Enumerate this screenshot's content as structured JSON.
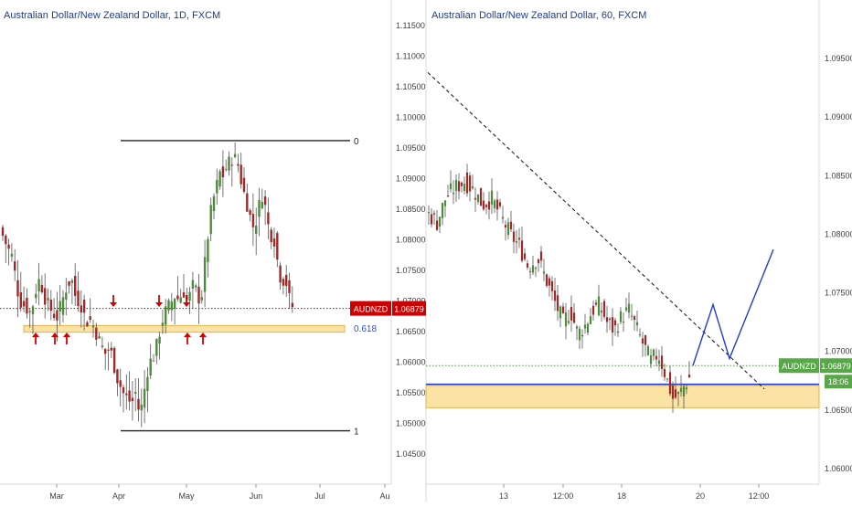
{
  "chart_data": [
    {
      "type": "candlestick",
      "title": "Australian Dollar/New Zealand Dollar, 1D, FXCM",
      "price_axis": {
        "ticks": [
          "1.11500",
          "1.11000",
          "1.10500",
          "1.10000",
          "1.09500",
          "1.09000",
          "1.08500",
          "1.08000",
          "1.07500",
          "1.07000",
          "1.06500",
          "1.06000",
          "1.05500",
          "1.05000",
          "1.04500"
        ]
      },
      "time_axis": {
        "ticks": [
          "Mar",
          "Apr",
          "May",
          "Jun",
          "Jul",
          "Au"
        ]
      },
      "ylim": [
        1.04,
        1.119
      ],
      "current_price": {
        "symbol": "AUDNZD",
        "value": "1.06879"
      },
      "fib_levels": [
        {
          "label": "0",
          "value": 1.0962
        },
        {
          "label": "0.618",
          "value": 1.0656
        },
        {
          "label": "1",
          "value": 1.0488
        }
      ],
      "support_zone": [
        1.0649,
        1.066
      ],
      "down_arrows": 3,
      "up_arrows": 5
    },
    {
      "type": "candlestick",
      "title": "Australian Dollar/New Zealand Dollar, 60, FXCM",
      "price_axis": {
        "ticks": [
          "1.09500",
          "1.09000",
          "1.08500",
          "1.08000",
          "1.07500",
          "1.07000",
          "1.06500",
          "1.06000"
        ]
      },
      "time_axis": {
        "ticks": [
          "13",
          "12:00",
          "18",
          "20",
          "12:00"
        ]
      },
      "ylim": [
        1.0575,
        1.099
      ],
      "current_price": {
        "symbol": "AUDNZD",
        "value": "1.06879",
        "countdown": "18:06"
      },
      "support_zone": [
        1.0652,
        1.0671
      ],
      "support_line": 1.0672,
      "trendline": {
        "from": 1.0938,
        "to": 1.0668
      },
      "projection": [
        1.0688,
        1.074,
        1.0694,
        1.0787
      ]
    }
  ]
}
